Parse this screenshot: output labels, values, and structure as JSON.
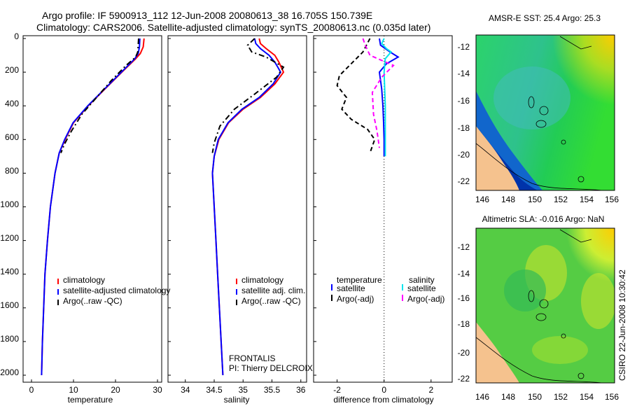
{
  "title_line1": "Argo profile: IF 5900913_112 12-Jun-2008 20080613_38 16.705S 150.739E",
  "title_line2": "Climatology: CARS2006. Satellite-adjusted climatology: synTS_20080613.nc (0.035d later)",
  "colors": {
    "climatology": "#ff0000",
    "satellite": "#0000ff",
    "argo": "#000000",
    "salinity_satellite": "#00e5ee",
    "salinity_argo": "#ff00ff",
    "land": "#f5c28e",
    "map_high": "#ffcc00"
  },
  "panels": {
    "temperature": {
      "xlabel": "temperature"
    },
    "salinity": {
      "xlabel": "salinity"
    },
    "difference": {
      "xlabel": "difference from climatology"
    }
  },
  "y_ticks": [
    "0",
    "200",
    "400",
    "600",
    "800",
    "1000",
    "1200",
    "1400",
    "1600",
    "1800",
    "2000"
  ],
  "legend_temperature": [
    "climatology",
    "satellite-adjusted climatology",
    "Argo(..raw -QC)"
  ],
  "legend_salinity": [
    "climatology",
    "satellite adj. clim.",
    "Argo(..raw -QC)"
  ],
  "legend_difference": {
    "temperature_header": "temperature",
    "salinity_header": "salinity",
    "temperature_items": [
      "satellite",
      "Argo(-adj)"
    ],
    "salinity_items": [
      "satellite",
      "Argo(-adj)"
    ]
  },
  "annotation": {
    "line1": "FRONTALIS",
    "line2": "PI: Thierry DELCROIX"
  },
  "maps": {
    "sst": {
      "title": "AMSR-E SST: 25.4 Argo: 25.3"
    },
    "sla": {
      "title": "Altimetric SLA: -0.016 Argo: NaN"
    },
    "x_ticks": [
      "146",
      "148",
      "150",
      "152",
      "154",
      "156"
    ],
    "y_ticks": [
      "-12",
      "-14",
      "-16",
      "-18",
      "-20",
      "-22"
    ]
  },
  "side_label": "CSIRO  22-Jun-2008 10:30:42",
  "chart_data": [
    {
      "type": "line",
      "xlabel": "temperature",
      "xlim": [
        -2,
        31
      ],
      "ylim": [
        0,
        2060
      ],
      "x_ticks": [
        0,
        10,
        20,
        30
      ],
      "y_reversed": true,
      "series": [
        {
          "name": "climatology",
          "color": "#ff0000",
          "dash": "",
          "points": [
            [
              26.8,
              0
            ],
            [
              26.6,
              50
            ],
            [
              25.9,
              90
            ],
            [
              24.8,
              120
            ],
            [
              21.5,
              200
            ],
            [
              17.5,
              300
            ],
            [
              13.5,
              400
            ],
            [
              10,
              500
            ],
            [
              8.0,
              600
            ],
            [
              6.6,
              680
            ],
            [
              5.6,
              800
            ],
            [
              4.5,
              1000
            ],
            [
              3.8,
              1200
            ],
            [
              3.2,
              1400
            ],
            [
              2.9,
              1600
            ],
            [
              2.6,
              1800
            ],
            [
              2.4,
              2000
            ]
          ]
        },
        {
          "name": "satellite-adjusted climatology",
          "color": "#0000ff",
          "dash": "",
          "points": [
            [
              25.8,
              0
            ],
            [
              25.7,
              50
            ],
            [
              25.4,
              90
            ],
            [
              24.6,
              120
            ],
            [
              21.4,
              200
            ],
            [
              17.4,
              300
            ],
            [
              13.4,
              400
            ],
            [
              9.9,
              500
            ],
            [
              7.9,
              600
            ],
            [
              6.6,
              680
            ],
            [
              5.6,
              800
            ],
            [
              4.5,
              1000
            ],
            [
              3.8,
              1200
            ],
            [
              3.2,
              1400
            ],
            [
              2.9,
              1600
            ],
            [
              2.6,
              1800
            ],
            [
              2.4,
              2000
            ]
          ]
        },
        {
          "name": "Argo(..raw -QC)",
          "color": "#000000",
          "dash": "8,4,2,4",
          "points": [
            [
              25.5,
              0
            ],
            [
              25.4,
              40
            ],
            [
              25.3,
              80
            ],
            [
              24.8,
              110
            ],
            [
              22.5,
              160
            ],
            [
              19,
              250
            ],
            [
              15.5,
              350
            ],
            [
              12,
              450
            ],
            [
              9.5,
              550
            ],
            [
              7.8,
              630
            ],
            [
              7,
              680
            ]
          ]
        }
      ]
    },
    {
      "type": "line",
      "xlabel": "salinity",
      "xlim": [
        33.7,
        36.1
      ],
      "ylim": [
        0,
        2060
      ],
      "x_ticks": [
        34,
        34.5,
        35,
        35.5,
        36
      ],
      "y_reversed": true,
      "series": [
        {
          "name": "climatology",
          "color": "#ff0000",
          "dash": "",
          "points": [
            [
              35.28,
              0
            ],
            [
              35.3,
              30
            ],
            [
              35.4,
              60
            ],
            [
              35.55,
              100
            ],
            [
              35.62,
              140
            ],
            [
              35.66,
              170
            ],
            [
              35.7,
              200
            ],
            [
              35.55,
              270
            ],
            [
              35.3,
              350
            ],
            [
              35.0,
              420
            ],
            [
              34.75,
              500
            ],
            [
              34.58,
              600
            ],
            [
              34.5,
              700
            ],
            [
              34.47,
              800
            ],
            [
              34.5,
              1000
            ],
            [
              34.53,
              1200
            ],
            [
              34.56,
              1400
            ],
            [
              34.59,
              1600
            ],
            [
              34.62,
              1800
            ],
            [
              34.65,
              2000
            ]
          ]
        },
        {
          "name": "satellite adj. clim.",
          "color": "#0000ff",
          "dash": "",
          "points": [
            [
              35.2,
              0
            ],
            [
              35.22,
              30
            ],
            [
              35.3,
              60
            ],
            [
              35.45,
              100
            ],
            [
              35.55,
              140
            ],
            [
              35.6,
              170
            ],
            [
              35.65,
              200
            ],
            [
              35.52,
              270
            ],
            [
              35.28,
              350
            ],
            [
              34.98,
              420
            ],
            [
              34.74,
              500
            ],
            [
              34.57,
              600
            ],
            [
              34.5,
              700
            ],
            [
              34.47,
              800
            ],
            [
              34.5,
              1000
            ],
            [
              34.53,
              1200
            ],
            [
              34.56,
              1400
            ],
            [
              34.59,
              1600
            ],
            [
              34.62,
              1800
            ],
            [
              34.65,
              2000
            ]
          ]
        },
        {
          "name": "Argo(..raw -QC)",
          "color": "#000000",
          "dash": "8,4,2,4",
          "points": [
            [
              35.2,
              0
            ],
            [
              35.08,
              40
            ],
            [
              35.15,
              80
            ],
            [
              35.4,
              110
            ],
            [
              35.55,
              140
            ],
            [
              35.7,
              170
            ],
            [
              35.58,
              230
            ],
            [
              35.2,
              330
            ],
            [
              34.85,
              420
            ],
            [
              34.6,
              520
            ],
            [
              34.5,
              620
            ],
            [
              34.47,
              680
            ]
          ]
        }
      ]
    },
    {
      "type": "line",
      "xlabel": "difference from climatology",
      "xlim": [
        -3,
        2.9
      ],
      "ylim": [
        0,
        2060
      ],
      "x_ticks": [
        -2,
        0,
        2
      ],
      "y_reversed": true,
      "zero_line": true,
      "series": [
        {
          "name": "satellite (temperature)",
          "color": "#0000ff",
          "dash": "",
          "points": [
            [
              -0.2,
              0
            ],
            [
              -0.15,
              40
            ],
            [
              0.25,
              80
            ],
            [
              0.6,
              110
            ],
            [
              0.1,
              150
            ],
            [
              -0.2,
              200
            ],
            [
              -0.1,
              300
            ],
            [
              -0.05,
              400
            ],
            [
              -0.02,
              500
            ],
            [
              0,
              600
            ],
            [
              0,
              700
            ]
          ]
        },
        {
          "name": "Argo(-adj) (temperature)",
          "color": "#000000",
          "dash": "6,4",
          "points": [
            [
              -0.6,
              0
            ],
            [
              -0.9,
              80
            ],
            [
              -1.4,
              150
            ],
            [
              -1.9,
              220
            ],
            [
              -2.0,
              280
            ],
            [
              -1.6,
              350
            ],
            [
              -1.8,
              420
            ],
            [
              -1.4,
              480
            ],
            [
              -0.7,
              540
            ],
            [
              -0.4,
              600
            ],
            [
              -0.6,
              680
            ]
          ]
        },
        {
          "name": "satellite (salinity)",
          "color": "#00e5ee",
          "dash": "",
          "points": [
            [
              0,
              0
            ],
            [
              -0.1,
              30
            ],
            [
              0.1,
              60
            ],
            [
              0.3,
              80
            ],
            [
              0.05,
              120
            ],
            [
              0,
              200
            ],
            [
              0.05,
              400
            ],
            [
              0.05,
              600
            ],
            [
              0.05,
              700
            ]
          ]
        },
        {
          "name": "Argo(-adj) (salinity)",
          "color": "#ff00ff",
          "dash": "6,4",
          "points": [
            [
              -0.9,
              0
            ],
            [
              -0.8,
              40
            ],
            [
              -0.6,
              100
            ],
            [
              0.4,
              160
            ],
            [
              -0.1,
              230
            ],
            [
              -0.5,
              320
            ],
            [
              -0.45,
              450
            ],
            [
              -0.3,
              550
            ],
            [
              -0.2,
              650
            ]
          ]
        }
      ]
    }
  ]
}
